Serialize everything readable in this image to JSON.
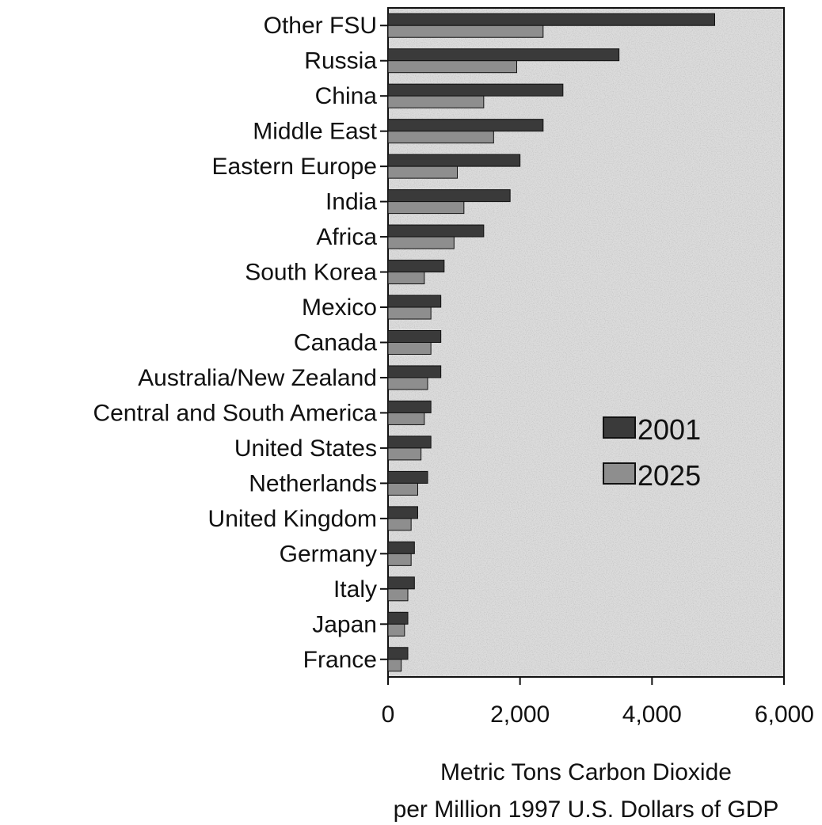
{
  "chart_data": {
    "type": "bar",
    "orientation": "horizontal",
    "categories": [
      "Other FSU",
      "Russia",
      "China",
      "Middle East",
      "Eastern Europe",
      "India",
      "Africa",
      "South Korea",
      "Mexico",
      "Canada",
      "Australia/New Zealand",
      "Central and South America",
      "United States",
      "Netherlands",
      "United Kingdom",
      "Germany",
      "Italy",
      "Japan",
      "France"
    ],
    "series": [
      {
        "name": "2001",
        "color": "#3a3a3a",
        "values": [
          4950,
          3500,
          2650,
          2350,
          2000,
          1850,
          1450,
          850,
          800,
          800,
          800,
          650,
          650,
          600,
          450,
          400,
          400,
          300,
          300
        ]
      },
      {
        "name": "2025",
        "color": "#8e8e8e",
        "values": [
          2350,
          1950,
          1450,
          1600,
          1050,
          1150,
          1000,
          550,
          650,
          650,
          600,
          550,
          500,
          450,
          350,
          350,
          300,
          250,
          200
        ]
      }
    ],
    "xlabel": [
      "Metric Tons Carbon Dioxide",
      "per Million 1997 U.S. Dollars of GDP"
    ],
    "xticks": [
      "0",
      "2,000",
      "4,000",
      "6,000"
    ],
    "xtick_values": [
      0,
      2000,
      4000,
      6000
    ],
    "xlim": [
      0,
      6000
    ],
    "legend": {
      "position": "right-middle",
      "items": [
        "2001",
        "2025"
      ]
    },
    "background": "#d4d4d4",
    "grid": false
  }
}
